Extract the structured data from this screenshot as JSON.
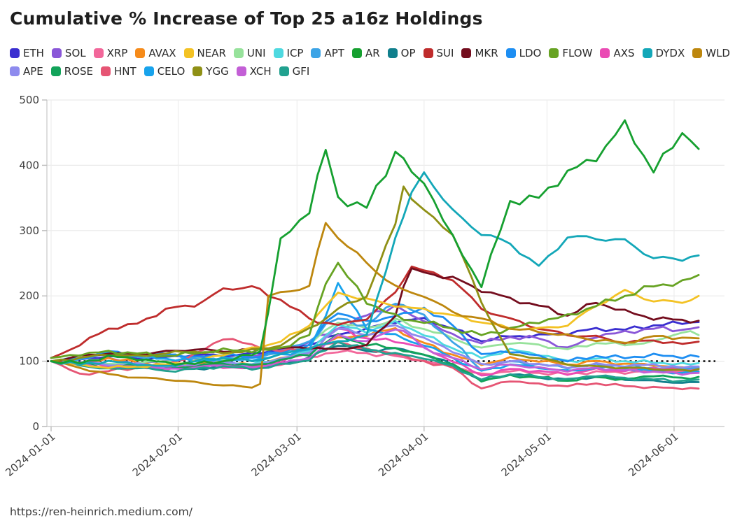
{
  "title": "Cumulative % Increase of Top 25 a16z Holdings",
  "footer_url": "https://ren-heinrich.medium.com/",
  "chart_data": {
    "type": "line",
    "title": "Cumulative % Increase of Top 25 a16z Holdings",
    "xlabel": "",
    "ylabel": "",
    "ylim": [
      0,
      500
    ],
    "y_ticks": [
      0,
      100,
      200,
      300,
      400,
      500
    ],
    "x_tick_labels": [
      "2024-01-01",
      "2024-02-01",
      "2024-03-01",
      "2024-04-01",
      "2024-05-01",
      "2024-06-01"
    ],
    "x_tick_days": [
      0,
      31,
      60,
      91,
      121,
      152
    ],
    "grid": true,
    "legend_position": "top",
    "baseline": {
      "value": 100,
      "style": "dotted",
      "color": "#151515"
    },
    "sample_days": [
      0,
      7,
      14,
      21,
      28,
      35,
      42,
      49,
      51,
      53,
      56,
      63,
      67,
      70,
      77,
      84,
      86,
      88,
      91,
      98,
      105,
      112,
      119,
      126,
      133,
      140,
      147,
      154,
      158
    ],
    "series": [
      {
        "name": "ETH",
        "color": "#3a2ed0",
        "values": [
          100,
          102,
          108,
          104,
          106,
          110,
          108,
          112,
          113,
          114,
          118,
          125,
          135,
          140,
          150,
          160,
          162,
          164,
          165,
          150,
          131,
          138,
          140,
          142,
          150,
          148,
          155,
          158,
          160
        ]
      },
      {
        "name": "SOL",
        "color": "#8a57d8",
        "values": [
          100,
          98,
          104,
          96,
          100,
          105,
          102,
          108,
          109,
          111,
          115,
          130,
          142,
          150,
          170,
          185,
          178,
          170,
          163,
          140,
          128,
          137,
          135,
          120,
          138,
          145,
          150,
          148,
          152
        ]
      },
      {
        "name": "XRP",
        "color": "#f2679a",
        "values": [
          100,
          96,
          92,
          90,
          88,
          92,
          95,
          90,
          91,
          92,
          95,
          105,
          112,
          115,
          112,
          108,
          106,
          103,
          100,
          92,
          80,
          85,
          82,
          80,
          84,
          82,
          86,
          84,
          85
        ]
      },
      {
        "name": "AVAX",
        "color": "#f68b1a",
        "values": [
          100,
          95,
          105,
          98,
          92,
          96,
          100,
          95,
          97,
          100,
          105,
          115,
          128,
          135,
          140,
          150,
          142,
          135,
          128,
          110,
          95,
          105,
          100,
          95,
          100,
          96,
          94,
          90,
          90
        ]
      },
      {
        "name": "NEAR",
        "color": "#f3c224",
        "values": [
          100,
          95,
          90,
          92,
          95,
          100,
          110,
          120,
          122,
          125,
          130,
          155,
          185,
          205,
          195,
          185,
          183,
          181,
          180,
          170,
          160,
          150,
          150,
          155,
          185,
          208,
          192,
          190,
          200
        ]
      },
      {
        "name": "UNI",
        "color": "#97e29b",
        "values": [
          100,
          98,
          95,
          97,
          100,
          104,
          102,
          106,
          107,
          109,
          112,
          125,
          148,
          160,
          150,
          165,
          160,
          155,
          150,
          135,
          120,
          128,
          125,
          118,
          128,
          125,
          130,
          145,
          140
        ]
      },
      {
        "name": "ICP",
        "color": "#4ed9e0",
        "values": [
          100,
          97,
          93,
          95,
          90,
          94,
          98,
          96,
          98,
          100,
          104,
          115,
          140,
          155,
          145,
          160,
          155,
          148,
          140,
          120,
          105,
          118,
          110,
          100,
          104,
          100,
          98,
          96,
          97
        ]
      },
      {
        "name": "APT",
        "color": "#3da4e6",
        "values": [
          100,
          102,
          112,
          106,
          110,
          104,
          100,
          105,
          107,
          110,
          115,
          130,
          155,
          165,
          155,
          190,
          185,
          178,
          169,
          130,
          86,
          100,
          95,
          90,
          95,
          92,
          90,
          88,
          90
        ]
      },
      {
        "name": "AR",
        "color": "#16a030",
        "values": [
          100,
          97,
          108,
          103,
          98,
          96,
          100,
          110,
          115,
          175,
          285,
          330,
          425,
          350,
          335,
          420,
          410,
          390,
          375,
          290,
          215,
          345,
          350,
          390,
          410,
          465,
          390,
          450,
          425
        ]
      },
      {
        "name": "OP",
        "color": "#107f8c",
        "values": [
          100,
          96,
          92,
          95,
          90,
          88,
          92,
          90,
          91,
          92,
          96,
          105,
          120,
          125,
          115,
          120,
          118,
          114,
          110,
          95,
          70,
          80,
          75,
          72,
          76,
          72,
          70,
          67,
          68
        ]
      },
      {
        "name": "SUI",
        "color": "#bf2c2c",
        "values": [
          105,
          125,
          150,
          157,
          180,
          185,
          210,
          215,
          210,
          200,
          195,
          165,
          158,
          155,
          165,
          205,
          225,
          245,
          238,
          225,
          180,
          165,
          150,
          140,
          138,
          128,
          132,
          126,
          130
        ]
      },
      {
        "name": "MKR",
        "color": "#740d1e",
        "values": [
          100,
          108,
          112,
          110,
          115,
          118,
          115,
          118,
          118,
          119,
          120,
          120,
          119,
          118,
          125,
          170,
          215,
          240,
          236,
          228,
          208,
          196,
          185,
          170,
          190,
          177,
          165,
          163,
          162
        ]
      },
      {
        "name": "LDO",
        "color": "#1d8ef2",
        "values": [
          100,
          104,
          115,
          108,
          112,
          106,
          110,
          105,
          108,
          112,
          112,
          125,
          160,
          175,
          160,
          170,
          172,
          176,
          182,
          155,
          110,
          115,
          108,
          100,
          108,
          105,
          110,
          106,
          107
        ]
      },
      {
        "name": "FLOW",
        "color": "#67a323",
        "values": [
          105,
          110,
          115,
          112,
          108,
          112,
          118,
          115,
          117,
          118,
          120,
          140,
          220,
          250,
          190,
          170,
          165,
          162,
          160,
          150,
          140,
          150,
          160,
          170,
          185,
          200,
          215,
          222,
          232
        ]
      },
      {
        "name": "AXS",
        "color": "#ea4bb4",
        "values": [
          100,
          97,
          92,
          95,
          90,
          94,
          90,
          92,
          93,
          95,
          100,
          112,
          135,
          150,
          135,
          130,
          128,
          124,
          120,
          100,
          78,
          88,
          85,
          80,
          88,
          85,
          90,
          86,
          88
        ]
      },
      {
        "name": "DYDX",
        "color": "#13a7b8",
        "values": [
          100,
          95,
          100,
          95,
          92,
          100,
          105,
          100,
          102,
          104,
          110,
          120,
          126,
          130,
          140,
          290,
          320,
          360,
          390,
          330,
          295,
          280,
          245,
          290,
          288,
          285,
          258,
          255,
          262
        ]
      },
      {
        "name": "WLD",
        "color": "#bd870e",
        "values": [
          100,
          90,
          80,
          75,
          72,
          68,
          63,
          60,
          65,
          200,
          205,
          215,
          315,
          290,
          250,
          215,
          210,
          205,
          200,
          175,
          165,
          150,
          145,
          140,
          132,
          128,
          138,
          136,
          135
        ]
      },
      {
        "name": "APE",
        "color": "#8e8bee",
        "values": [
          100,
          98,
          94,
          96,
          92,
          95,
          98,
          95,
          96,
          98,
          105,
          112,
          135,
          150,
          140,
          155,
          150,
          142,
          135,
          115,
          95,
          100,
          96,
          90,
          96,
          92,
          95,
          90,
          92
        ]
      },
      {
        "name": "ROSE",
        "color": "#12a35a",
        "values": [
          100,
          96,
          90,
          93,
          88,
          92,
          96,
          94,
          95,
          97,
          102,
          110,
          128,
          140,
          125,
          120,
          116,
          113,
          110,
          95,
          70,
          78,
          75,
          70,
          76,
          72,
          78,
          74,
          76
        ]
      },
      {
        "name": "HNT",
        "color": "#e65574",
        "values": [
          100,
          80,
          85,
          90,
          95,
          110,
          135,
          125,
          122,
          118,
          115,
          120,
          126,
          130,
          118,
          112,
          108,
          104,
          100,
          90,
          58,
          70,
          65,
          62,
          66,
          62,
          60,
          58,
          58
        ]
      },
      {
        "name": "CELO",
        "color": "#18a3ec",
        "values": [
          100,
          105,
          112,
          108,
          104,
          100,
          105,
          102,
          103,
          105,
          110,
          118,
          170,
          220,
          150,
          140,
          135,
          130,
          125,
          105,
          85,
          95,
          90,
          85,
          90,
          88,
          85,
          82,
          84
        ]
      },
      {
        "name": "YGG",
        "color": "#8f9015",
        "values": [
          100,
          105,
          110,
          108,
          112,
          115,
          112,
          118,
          119,
          121,
          125,
          150,
          165,
          180,
          200,
          310,
          370,
          345,
          330,
          295,
          190,
          110,
          105,
          95,
          92,
          90,
          88,
          86,
          88
        ]
      },
      {
        "name": "XCH",
        "color": "#c35fd6",
        "values": [
          100,
          95,
          90,
          92,
          88,
          90,
          94,
          90,
          91,
          93,
          96,
          105,
          125,
          140,
          130,
          150,
          145,
          138,
          120,
          105,
          88,
          95,
          90,
          85,
          90,
          86,
          84,
          80,
          82
        ]
      },
      {
        "name": "GFI",
        "color": "#21a18f",
        "values": [
          100,
          94,
          88,
          90,
          85,
          88,
          92,
          88,
          89,
          90,
          95,
          102,
          118,
          130,
          118,
          112,
          110,
          108,
          105,
          92,
          72,
          80,
          76,
          72,
          78,
          74,
          72,
          70,
          72
        ]
      }
    ],
    "z_top": [
      "SUI",
      "MKR",
      "NEAR",
      "YGG",
      "FLOW",
      "WLD",
      "DYDX",
      "AR"
    ]
  }
}
